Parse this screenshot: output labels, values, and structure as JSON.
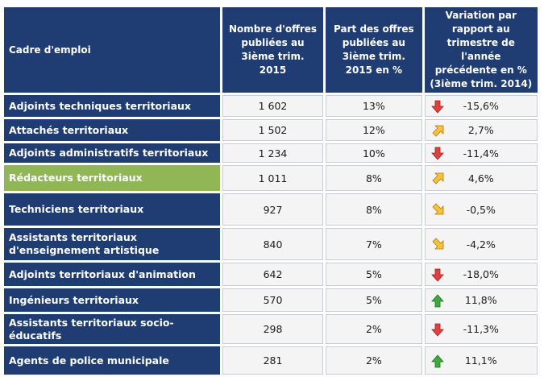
{
  "table": {
    "header": [
      "Cadre d'emploi",
      "Nombre d'offres publiées au 3ième trim. 2015",
      "Part des offres publiées au 3ième trim. 2015 en %",
      "Variation par rapport au trimestre de l'année précédente en % (3ième trim. 2014)"
    ],
    "rows": [
      [
        "Adjoints techniques territoriaux",
        "1 602",
        "13%",
        "-15,6%"
      ],
      [
        "Attachés territoriaux",
        "1 502",
        "12%",
        "2,7%"
      ],
      [
        "Adjoints administratifs territoriaux",
        "1 234",
        "10%",
        "-11,4%"
      ],
      [
        "Rédacteurs territoriaux",
        "1 011",
        "8%",
        "4,6%"
      ],
      [
        "Techniciens territoriaux",
        "927",
        "8%",
        "-0,5%"
      ],
      [
        "Assistants territoriaux d'enseignement artistique",
        "840",
        "7%",
        "-4,2%"
      ],
      [
        "Adjoints territoriaux d'animation",
        "642",
        "5%",
        "-18,0%"
      ],
      [
        "Ingénieurs territoriaux",
        "570",
        "5%",
        "11,8%"
      ],
      [
        "Assistants territoriaux socio-éducatifs",
        "298",
        "2%",
        "-11,3%"
      ],
      [
        "Agents de police municipale",
        "281",
        "2%",
        "11,1%"
      ]
    ]
  }
}
